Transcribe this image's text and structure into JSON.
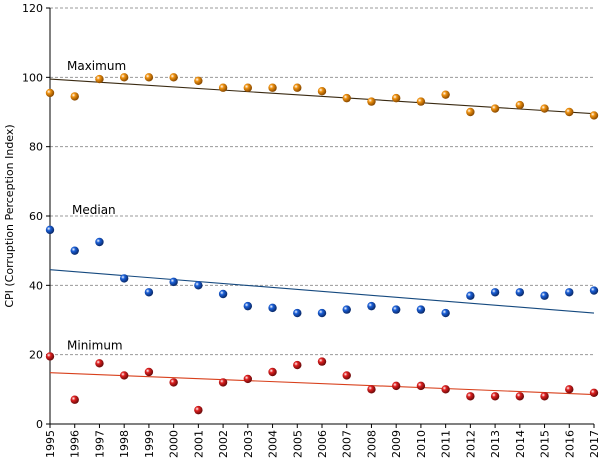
{
  "chart_data": {
    "type": "scatter",
    "ylabel": "CPI (Corruption Perception Index)",
    "ylim": [
      0,
      120
    ],
    "yticks": [
      0,
      20,
      40,
      60,
      80,
      100,
      120
    ],
    "grid": true,
    "x": [
      "1995",
      "1996",
      "1997",
      "1998",
      "1999",
      "2000",
      "2001",
      "2002",
      "2003",
      "2004",
      "2005",
      "2006",
      "2007",
      "2008",
      "2009",
      "2010",
      "2011",
      "2012",
      "2013",
      "2014",
      "2015",
      "2016",
      "2017"
    ],
    "series": [
      {
        "name": "Maximum",
        "color": "#f0920f",
        "values": [
          95.5,
          94.5,
          99.5,
          100,
          100,
          100,
          99,
          97,
          97,
          97,
          97,
          96,
          94,
          93,
          94,
          93,
          95,
          90,
          91,
          92,
          91,
          90,
          89
        ],
        "trend": [
          99.5,
          89.5
        ],
        "trend_color": "#3a2a12"
      },
      {
        "name": "Median",
        "color": "#1a5fd8",
        "values": [
          56,
          50,
          52.5,
          42,
          38,
          41,
          40,
          37.5,
          34,
          33.5,
          32,
          32,
          33,
          34,
          33,
          33,
          32,
          37,
          38,
          38,
          37,
          38,
          38.5
        ],
        "trend": [
          44.5,
          32
        ],
        "trend_color": "#15497f"
      },
      {
        "name": "Minimum",
        "color": "#e02020",
        "values": [
          19.5,
          7,
          17.5,
          14,
          15,
          12,
          4,
          12,
          13,
          15,
          17,
          18,
          14,
          10,
          11,
          11,
          10,
          8,
          8,
          8,
          8,
          10,
          9
        ],
        "trend": [
          14.8,
          8.5
        ],
        "trend_color": "#d8401c"
      }
    ]
  }
}
